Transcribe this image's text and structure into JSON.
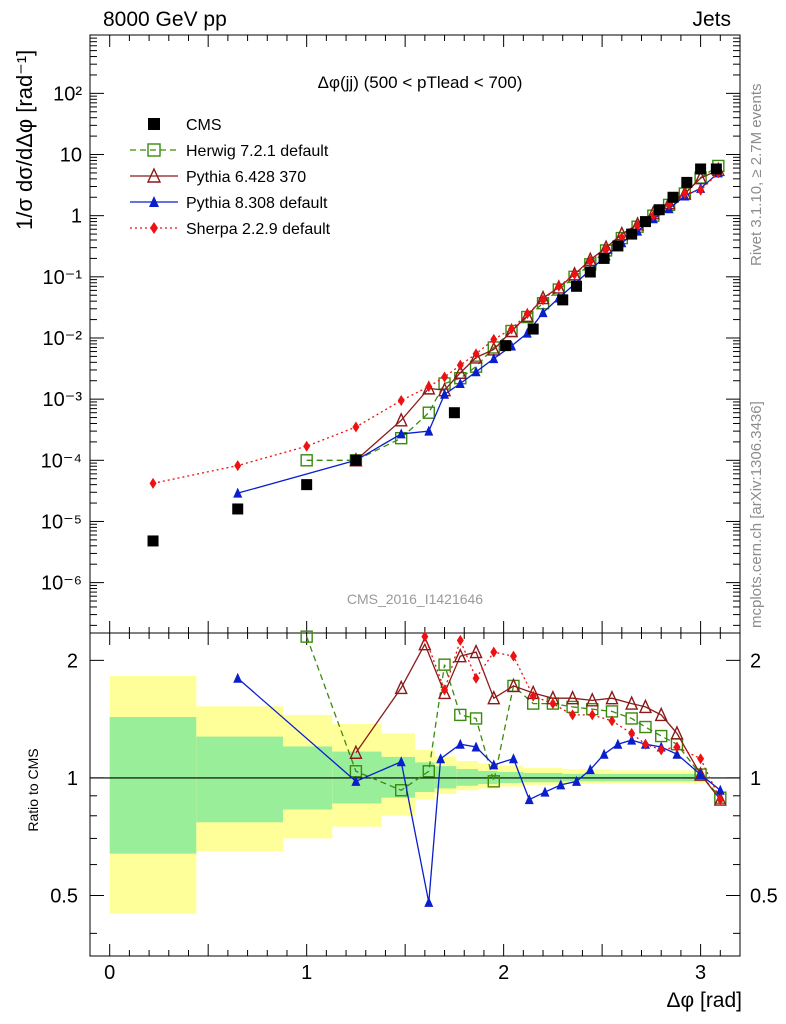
{
  "header": {
    "left": "8000 GeV pp",
    "right": "Jets"
  },
  "side_labels": {
    "rivet": "Rivet 3.1.10, ≥ 2.7M events",
    "mcplots": "mcplots.cern.ch [arXiv:1306.3436]"
  },
  "watermark": "CMS_2016_I1421646",
  "chart_data": {
    "type": "line",
    "title": "Δφ(jj) (500 < pTlead <  700)",
    "xlabel": "Δφ [rad]",
    "ylabel": "1/σ dσ/dΔφ [rad⁻¹]",
    "ratio_ylabel": "Ratio to CMS",
    "xlim": [
      -0.1,
      3.2
    ],
    "ylim_main": [
      1.5e-07,
      900
    ],
    "ylim_ratio": [
      0.35,
      2.35
    ],
    "y_scale": "log",
    "legend_position": "top-left",
    "main_y_ticks": [
      "10⁻⁶",
      "10⁻⁵",
      "10⁻⁴",
      "10⁻³",
      "10⁻²",
      "10⁻¹",
      "1",
      "10",
      "10²"
    ],
    "ratio_y_ticks": [
      "0.5",
      "1",
      "2"
    ],
    "x_ticks": [
      "0",
      "1",
      "2",
      "3"
    ],
    "series": [
      {
        "name": "CMS",
        "color": "#000000",
        "marker": "square-filled",
        "x": [
          0.22,
          0.65,
          1.0,
          1.25,
          1.75,
          2.01,
          2.15,
          2.3,
          2.37,
          2.44,
          2.51,
          2.58,
          2.65,
          2.72,
          2.79,
          2.86,
          2.93,
          3.0,
          3.08
        ],
        "y": [
          4.8e-06,
          1.6e-05,
          4e-05,
          0.0001,
          0.0006,
          0.0075,
          0.014,
          0.042,
          0.07,
          0.12,
          0.2,
          0.32,
          0.5,
          0.8,
          1.25,
          2.0,
          3.5,
          5.8,
          5.8
        ]
      },
      {
        "name": "Herwig 7.2.1 default",
        "color": "#3a8a0e",
        "marker": "square-open",
        "dash": "dashed",
        "x": [
          1.0,
          1.25,
          1.48,
          1.62,
          1.7,
          1.78,
          1.86,
          1.95,
          2.04,
          2.12,
          2.2,
          2.28,
          2.36,
          2.44,
          2.52,
          2.6,
          2.68,
          2.76,
          2.84,
          2.92,
          3.0,
          3.09
        ],
        "y": [
          0.0001,
          0.0001,
          0.00023,
          0.0006,
          0.0018,
          0.0022,
          0.0034,
          0.007,
          0.013,
          0.022,
          0.037,
          0.062,
          0.1,
          0.16,
          0.27,
          0.43,
          0.66,
          1.0,
          1.5,
          2.3,
          4.2,
          6.5
        ],
        "ratio_x": [
          1.0,
          1.25,
          1.48,
          1.62,
          1.7,
          1.78,
          1.86,
          1.95,
          2.05,
          2.15,
          2.25,
          2.35,
          2.45,
          2.55,
          2.65,
          2.72,
          2.8,
          2.88,
          3.0,
          3.1
        ],
        "ratio": [
          2.3,
          1.04,
          0.93,
          1.04,
          1.95,
          1.45,
          1.42,
          0.98,
          1.72,
          1.55,
          1.55,
          1.52,
          1.5,
          1.48,
          1.42,
          1.35,
          1.28,
          1.22,
          1.02,
          0.89
        ]
      },
      {
        "name": "Pythia 6.428 370",
        "color": "#8b1a1a",
        "marker": "triangle-open",
        "dash": "solid",
        "x": [
          0.22,
          0.65,
          1.0,
          1.25,
          1.48,
          1.62,
          1.7,
          1.78,
          1.86,
          1.95,
          2.04,
          2.12,
          2.2,
          2.28,
          2.36,
          2.44,
          2.52,
          2.6,
          2.68,
          2.76,
          2.84,
          2.92,
          3.0,
          3.09
        ],
        "y": [
          null,
          null,
          null,
          0.0001,
          0.00045,
          0.0015,
          0.0014,
          0.0027,
          0.0048,
          0.0065,
          0.013,
          0.023,
          0.045,
          0.067,
          0.11,
          0.19,
          0.3,
          0.5,
          0.72,
          1.1,
          1.6,
          2.3,
          4.1,
          5.6
        ],
        "ratio_x": [
          1.25,
          1.48,
          1.6,
          1.7,
          1.78,
          1.86,
          1.95,
          2.05,
          2.15,
          2.25,
          2.35,
          2.45,
          2.55,
          2.65,
          2.72,
          2.8,
          2.88,
          3.0,
          3.1
        ],
        "ratio": [
          1.16,
          1.7,
          2.2,
          1.65,
          2.05,
          2.1,
          1.6,
          1.72,
          1.65,
          1.6,
          1.6,
          1.58,
          1.6,
          1.55,
          1.52,
          1.45,
          1.3,
          1.02,
          0.88
        ]
      },
      {
        "name": "Pythia 8.308 default",
        "color": "#0a1ecc",
        "marker": "triangle-filled",
        "dash": "solid",
        "x": [
          0.65,
          1.25,
          1.48,
          1.62,
          1.7,
          1.78,
          1.86,
          1.95,
          2.04,
          2.12,
          2.2,
          2.28,
          2.36,
          2.44,
          2.52,
          2.6,
          2.68,
          2.76,
          2.84,
          2.92,
          3.0,
          3.09
        ],
        "y": [
          2.9e-05,
          0.0001,
          0.00027,
          0.0003,
          0.0012,
          0.0018,
          0.0028,
          0.0046,
          0.0074,
          0.012,
          0.026,
          0.045,
          0.076,
          0.13,
          0.22,
          0.36,
          0.56,
          0.89,
          1.3,
          2.1,
          2.8,
          5.0
        ],
        "ratio_x": [
          0.65,
          1.25,
          1.48,
          1.62,
          1.68,
          1.78,
          1.86,
          1.95,
          2.05,
          2.13,
          2.21,
          2.29,
          2.37,
          2.44,
          2.51,
          2.58,
          2.65,
          2.72,
          2.8,
          2.88,
          3.0,
          3.1
        ],
        "ratio": [
          1.8,
          0.98,
          1.1,
          0.48,
          1.12,
          1.22,
          1.2,
          1.08,
          1.12,
          0.88,
          0.92,
          0.96,
          0.98,
          1.05,
          1.15,
          1.22,
          1.25,
          1.22,
          1.2,
          1.15,
          1.02,
          0.93
        ]
      },
      {
        "name": "Sherpa 2.2.9 default",
        "color": "#ee1111",
        "marker": "diamond-filled",
        "dash": "dotted",
        "x": [
          0.22,
          0.65,
          1.0,
          1.25,
          1.48,
          1.62,
          1.7,
          1.78,
          1.86,
          1.95,
          2.04,
          2.12,
          2.2,
          2.28,
          2.36,
          2.44,
          2.52,
          2.6,
          2.68,
          2.76,
          2.84,
          2.92,
          3.0,
          3.09
        ],
        "y": [
          4.2e-05,
          8.2e-05,
          0.00017,
          0.00035,
          0.00095,
          0.0016,
          0.0023,
          0.0036,
          0.0055,
          0.0095,
          0.014,
          0.025,
          0.042,
          0.07,
          0.11,
          0.18,
          0.28,
          0.44,
          0.68,
          1.0,
          1.5,
          2.3,
          2.6,
          5.0
        ],
        "ratio_x": [
          1.6,
          1.7,
          1.78,
          1.86,
          1.95,
          2.05,
          2.15,
          2.25,
          2.35,
          2.45,
          2.55,
          2.65,
          2.72,
          2.8,
          2.88,
          3.0,
          3.1
        ],
        "ratio": [
          2.3,
          1.68,
          2.25,
          1.8,
          2.1,
          2.05,
          1.62,
          1.55,
          1.45,
          1.45,
          1.4,
          1.3,
          1.22,
          1.18,
          1.2,
          1.12,
          0.88
        ]
      }
    ]
  }
}
